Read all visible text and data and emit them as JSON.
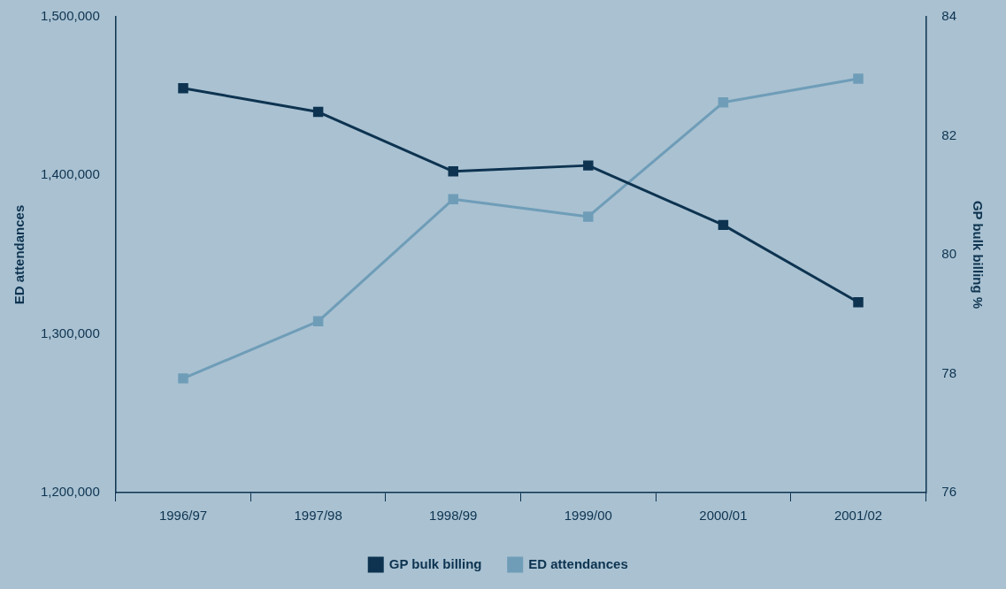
{
  "chart_data": {
    "type": "line",
    "categories": [
      "1996/97",
      "1997/98",
      "1998/99",
      "1999/00",
      "2000/01",
      "2001/02"
    ],
    "ylabel": "ED attendances",
    "y2label": "GP bulk billing %",
    "ylim": [
      1200000,
      1500000
    ],
    "yticks": [
      {
        "value": 1200000,
        "label": "1,200,000"
      },
      {
        "value": 1300000,
        "label": "1,300,000"
      },
      {
        "value": 1400000,
        "label": "1,400,000"
      },
      {
        "value": 1500000,
        "label": "1,500,000"
      }
    ],
    "y2lim": [
      76,
      84
    ],
    "y2ticks": [
      76,
      78,
      80,
      82,
      84
    ],
    "series": [
      {
        "name": "GP bulk billing",
        "color": "#0d3350",
        "axis": "y2",
        "values": [
          82.8,
          82.4,
          81.4,
          81.5,
          80.5,
          79.2
        ]
      },
      {
        "name": "ED attendances",
        "color": "#6f9db8",
        "values": [
          1272000,
          1308000,
          1385000,
          1374000,
          1446000,
          1461000
        ]
      }
    ],
    "marker": "square",
    "line_style": "solid",
    "grid": false,
    "legend": "bottom"
  }
}
